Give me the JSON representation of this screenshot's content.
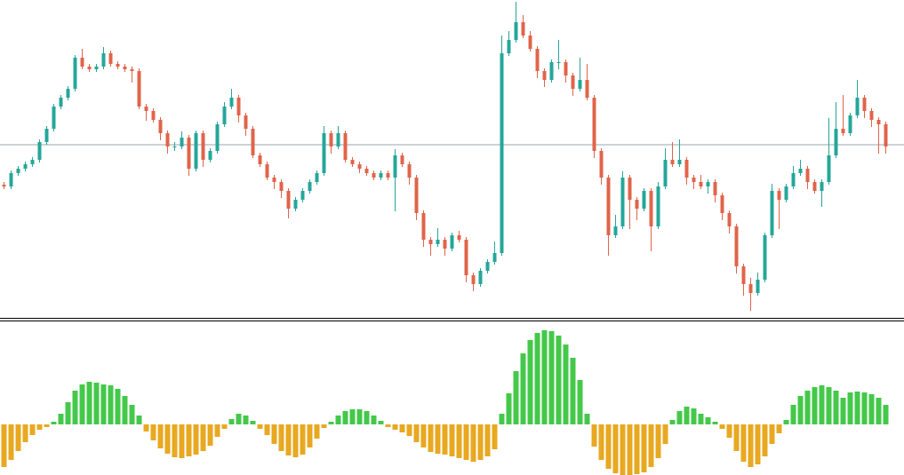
{
  "chart_data": [
    {
      "type": "candlestick",
      "up_color": "#26a69a",
      "down_color": "#e0644a",
      "hline": 195,
      "hline_color": "#9aa4ad",
      "ylim": [
        0,
        358
      ],
      "open": [
        150,
        148,
        163,
        168,
        173,
        178,
        198,
        213,
        238,
        248,
        258,
        293,
        283,
        280,
        283,
        298,
        286,
        283,
        280,
        278,
        238,
        233,
        223,
        208,
        193,
        193,
        203,
        168,
        208,
        178,
        188,
        218,
        238,
        248,
        228,
        213,
        183,
        173,
        158,
        153,
        143,
        123,
        133,
        143,
        153,
        163,
        208,
        193,
        208,
        178,
        173,
        168,
        163,
        158,
        163,
        158,
        183,
        173,
        158,
        118,
        88,
        83,
        88,
        78,
        93,
        88,
        48,
        38,
        53,
        63,
        73,
        298,
        313,
        333,
        318,
        303,
        278,
        268,
        288,
        288,
        273,
        258,
        268,
        248,
        188,
        158,
        93,
        103,
        158,
        133,
        123,
        143,
        103,
        148,
        178,
        173,
        178,
        158,
        153,
        148,
        153,
        138,
        118,
        103,
        58,
        38,
        28,
        43,
        93,
        143,
        133,
        148,
        163,
        168,
        153,
        143,
        153,
        183,
        213,
        208,
        228,
        248,
        233,
        223,
        218
      ],
      "high": [
        153,
        166,
        171,
        176,
        181,
        201,
        216,
        241,
        251,
        261,
        296,
        303,
        286,
        286,
        305,
        301,
        289,
        286,
        283,
        281,
        241,
        236,
        226,
        211,
        198,
        210,
        206,
        211,
        211,
        191,
        221,
        243,
        258,
        251,
        231,
        216,
        186,
        176,
        161,
        156,
        146,
        136,
        146,
        156,
        166,
        216,
        211,
        216,
        211,
        181,
        176,
        171,
        166,
        166,
        166,
        190,
        186,
        176,
        161,
        121,
        91,
        101,
        91,
        96,
        98,
        91,
        51,
        56,
        66,
        86,
        318,
        323,
        356,
        341,
        323,
        306,
        281,
        291,
        313,
        291,
        276,
        293,
        286,
        251,
        191,
        161,
        116,
        165,
        161,
        136,
        146,
        146,
        153,
        191,
        198,
        201,
        181,
        161,
        161,
        156,
        156,
        141,
        121,
        106,
        61,
        45,
        51,
        96,
        151,
        146,
        151,
        171,
        178,
        171,
        156,
        156,
        225,
        243,
        251,
        231,
        268,
        251,
        236,
        226,
        221
      ],
      "low": [
        145,
        145,
        160,
        165,
        170,
        175,
        195,
        210,
        235,
        245,
        255,
        280,
        277,
        277,
        280,
        283,
        280,
        277,
        265,
        235,
        222,
        220,
        200,
        185,
        188,
        190,
        160,
        165,
        170,
        175,
        185,
        215,
        235,
        220,
        205,
        180,
        170,
        155,
        145,
        135,
        112,
        120,
        130,
        140,
        150,
        160,
        185,
        190,
        175,
        170,
        163,
        160,
        155,
        155,
        155,
        120,
        170,
        150,
        110,
        80,
        70,
        80,
        70,
        75,
        85,
        40,
        30,
        35,
        50,
        60,
        70,
        295,
        310,
        315,
        300,
        270,
        260,
        265,
        280,
        265,
        250,
        255,
        245,
        180,
        150,
        70,
        90,
        100,
        100,
        110,
        120,
        75,
        100,
        145,
        170,
        170,
        150,
        145,
        145,
        140,
        130,
        110,
        95,
        50,
        25,
        8,
        25,
        40,
        90,
        100,
        130,
        145,
        160,
        145,
        140,
        125,
        150,
        180,
        205,
        205,
        225,
        225,
        215,
        185,
        185
      ],
      "close": [
        148,
        163,
        168,
        173,
        178,
        198,
        213,
        238,
        248,
        258,
        293,
        283,
        280,
        283,
        298,
        286,
        283,
        280,
        278,
        238,
        233,
        223,
        208,
        193,
        193,
        203,
        168,
        208,
        178,
        188,
        218,
        238,
        248,
        228,
        213,
        183,
        173,
        158,
        153,
        143,
        123,
        133,
        143,
        153,
        163,
        208,
        193,
        208,
        178,
        173,
        168,
        163,
        158,
        163,
        158,
        183,
        173,
        158,
        118,
        88,
        83,
        88,
        78,
        93,
        88,
        48,
        38,
        53,
        63,
        73,
        298,
        313,
        333,
        318,
        303,
        278,
        268,
        288,
        288,
        273,
        258,
        268,
        248,
        188,
        158,
        93,
        103,
        158,
        133,
        123,
        143,
        103,
        148,
        178,
        173,
        178,
        158,
        153,
        148,
        153,
        138,
        118,
        103,
        58,
        38,
        28,
        43,
        93,
        143,
        133,
        148,
        163,
        168,
        153,
        143,
        153,
        183,
        213,
        208,
        228,
        248,
        233,
        223,
        218,
        193
      ]
    },
    {
      "type": "bar",
      "positive_color": "#44c84a",
      "negative_color": "#e8a820",
      "ylim": [
        -57,
        116
      ],
      "values": [
        -48,
        -40,
        -30,
        -20,
        -12,
        -6,
        -3,
        3,
        12,
        25,
        38,
        45,
        48,
        47,
        45,
        44,
        40,
        32,
        22,
        10,
        -8,
        -18,
        -27,
        -33,
        -37,
        -38,
        -36,
        -34,
        -30,
        -24,
        -14,
        -5,
        6,
        12,
        10,
        4,
        -5,
        -12,
        -22,
        -30,
        -35,
        -37,
        -34,
        -26,
        -16,
        -4,
        3,
        10,
        15,
        17,
        17,
        15,
        10,
        4,
        -3,
        -6,
        -9,
        -13,
        -20,
        -26,
        -31,
        -33,
        -34,
        -36,
        -38,
        -40,
        -42,
        -40,
        -36,
        -28,
        12,
        35,
        60,
        80,
        95,
        103,
        106,
        105,
        100,
        90,
        75,
        50,
        12,
        -25,
        -40,
        -50,
        -55,
        -57,
        -57,
        -56,
        -54,
        -48,
        -38,
        -22,
        5,
        15,
        20,
        18,
        12,
        8,
        3,
        -5,
        -15,
        -30,
        -42,
        -48,
        -45,
        -36,
        -22,
        -10,
        5,
        22,
        32,
        38,
        42,
        44,
        42,
        38,
        30,
        36,
        37,
        36,
        34,
        30,
        22
      ]
    }
  ]
}
